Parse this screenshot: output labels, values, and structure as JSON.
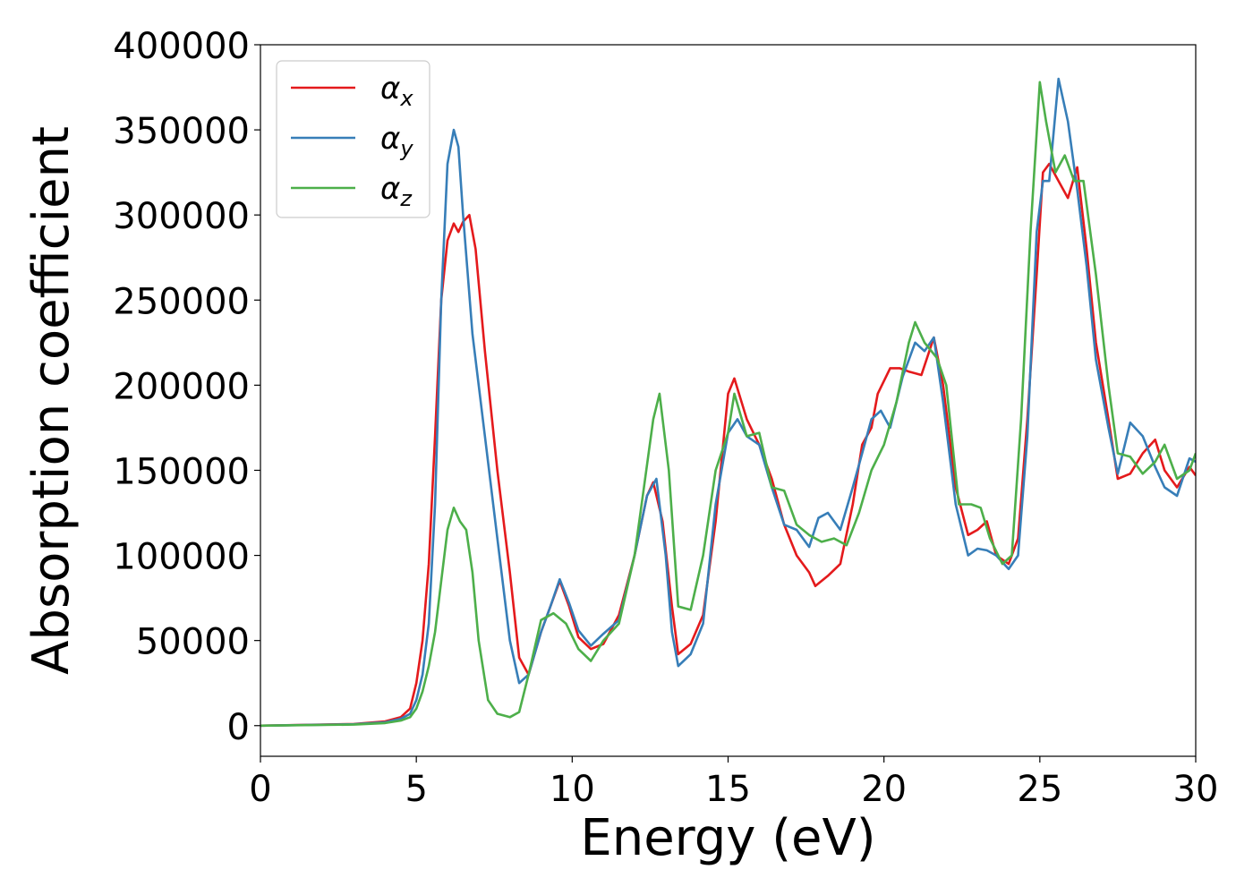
{
  "chart_data": {
    "type": "line",
    "title": "",
    "xlabel": "Energy (eV)",
    "ylabel": "Absorption coefficient",
    "xlim": [
      0,
      30
    ],
    "ylim": [
      -18000,
      400000
    ],
    "xticks": [
      0,
      5,
      10,
      15,
      20,
      25,
      30
    ],
    "xtick_labels": [
      "0",
      "5",
      "10",
      "15",
      "20",
      "25",
      "30"
    ],
    "yticks": [
      0,
      50000,
      100000,
      150000,
      200000,
      250000,
      300000,
      350000,
      400000
    ],
    "ytick_labels": [
      "0",
      "50000",
      "100000",
      "150000",
      "200000",
      "250000",
      "300000",
      "350000",
      "400000"
    ],
    "grid": false,
    "legend_position": "top-left",
    "series": [
      {
        "name": "αx",
        "label_main": "α",
        "label_sub": "x",
        "color": "#e41a1c",
        "x": [
          0,
          3,
          4,
          4.5,
          4.8,
          5.0,
          5.2,
          5.4,
          5.6,
          5.8,
          6.0,
          6.2,
          6.35,
          6.5,
          6.7,
          6.9,
          7.2,
          7.6,
          8.0,
          8.3,
          8.6,
          9.0,
          9.3,
          9.6,
          9.9,
          10.2,
          10.6,
          11.0,
          11.5,
          12.0,
          12.4,
          12.6,
          12.9,
          13.2,
          13.4,
          13.8,
          14.2,
          14.6,
          15.0,
          15.2,
          15.6,
          16.0,
          16.4,
          16.8,
          17.2,
          17.6,
          17.8,
          18.2,
          18.6,
          19.0,
          19.3,
          19.6,
          19.8,
          20.2,
          20.5,
          20.8,
          21.2,
          21.6,
          21.9,
          22.3,
          22.7,
          23.0,
          23.3,
          23.6,
          24.0,
          24.3,
          24.6,
          24.9,
          25.1,
          25.3,
          25.6,
          25.9,
          26.2,
          26.5,
          26.8,
          27.2,
          27.5,
          27.9,
          28.3,
          28.7,
          29.0,
          29.4,
          29.8,
          30.0
        ],
        "y": [
          0,
          1000,
          2500,
          5000,
          10000,
          25000,
          50000,
          95000,
          170000,
          250000,
          285000,
          295000,
          290000,
          296000,
          300000,
          280000,
          220000,
          150000,
          90000,
          40000,
          30000,
          55000,
          70000,
          85000,
          70000,
          52000,
          45000,
          48000,
          65000,
          100000,
          135000,
          143000,
          120000,
          70000,
          42000,
          48000,
          65000,
          120000,
          195000,
          204000,
          180000,
          165000,
          145000,
          118000,
          100000,
          90000,
          82000,
          88000,
          95000,
          130000,
          165000,
          175000,
          195000,
          210000,
          210000,
          208000,
          206000,
          228000,
          200000,
          140000,
          112000,
          115000,
          120000,
          100000,
          95000,
          110000,
          180000,
          265000,
          325000,
          330000,
          320000,
          310000,
          328000,
          280000,
          225000,
          180000,
          145000,
          148000,
          160000,
          168000,
          150000,
          140000,
          152000,
          147000
        ]
      },
      {
        "name": "αy",
        "label_main": "α",
        "label_sub": "y",
        "color": "#377eb8",
        "x": [
          0,
          3,
          4,
          4.5,
          4.8,
          5.0,
          5.2,
          5.4,
          5.6,
          5.8,
          6.0,
          6.2,
          6.35,
          6.5,
          6.8,
          7.2,
          7.6,
          8.0,
          8.3,
          8.6,
          9.0,
          9.3,
          9.6,
          9.9,
          10.2,
          10.6,
          11.0,
          11.5,
          12.0,
          12.4,
          12.7,
          13.0,
          13.2,
          13.4,
          13.8,
          14.2,
          14.6,
          15.0,
          15.3,
          15.6,
          16.0,
          16.4,
          16.8,
          17.2,
          17.6,
          17.9,
          18.2,
          18.6,
          19.0,
          19.3,
          19.6,
          19.9,
          20.2,
          20.6,
          21.0,
          21.3,
          21.6,
          21.9,
          22.3,
          22.7,
          23.0,
          23.3,
          23.6,
          24.0,
          24.3,
          24.6,
          24.9,
          25.1,
          25.3,
          25.6,
          25.9,
          26.2,
          26.5,
          26.8,
          27.2,
          27.5,
          27.9,
          28.3,
          28.7,
          29.0,
          29.4,
          29.8,
          30.0
        ],
        "y": [
          0,
          800,
          2000,
          4000,
          7000,
          15000,
          30000,
          60000,
          130000,
          250000,
          330000,
          350000,
          340000,
          300000,
          230000,
          170000,
          110000,
          50000,
          25000,
          30000,
          55000,
          70000,
          86000,
          72000,
          56000,
          47000,
          54000,
          62000,
          100000,
          135000,
          145000,
          100000,
          55000,
          35000,
          42000,
          60000,
          130000,
          172000,
          180000,
          170000,
          165000,
          140000,
          118000,
          115000,
          105000,
          122000,
          125000,
          115000,
          140000,
          160000,
          180000,
          185000,
          175000,
          205000,
          225000,
          220000,
          228000,
          190000,
          130000,
          100000,
          104000,
          103000,
          100000,
          92000,
          100000,
          170000,
          290000,
          320000,
          320000,
          380000,
          355000,
          315000,
          270000,
          215000,
          175000,
          148000,
          178000,
          170000,
          152000,
          140000,
          135000,
          157000,
          155000
        ]
      },
      {
        "name": "αz",
        "label_main": "α",
        "label_sub": "z",
        "color": "#4daf4a",
        "x": [
          0,
          3,
          4,
          4.5,
          4.8,
          5.0,
          5.2,
          5.4,
          5.6,
          5.8,
          6.0,
          6.2,
          6.4,
          6.6,
          6.8,
          7.0,
          7.3,
          7.6,
          8.0,
          8.3,
          8.6,
          9.0,
          9.4,
          9.8,
          10.2,
          10.6,
          11.0,
          11.5,
          12.0,
          12.3,
          12.6,
          12.8,
          13.1,
          13.4,
          13.8,
          14.2,
          14.6,
          15.0,
          15.2,
          15.6,
          16.0,
          16.4,
          16.8,
          17.2,
          17.6,
          18.0,
          18.4,
          18.8,
          19.2,
          19.6,
          20.0,
          20.4,
          20.8,
          21.0,
          21.3,
          21.7,
          22.0,
          22.4,
          22.8,
          23.1,
          23.4,
          23.8,
          24.1,
          24.4,
          24.7,
          25.0,
          25.2,
          25.5,
          25.8,
          26.1,
          26.4,
          26.8,
          27.2,
          27.5,
          27.9,
          28.3,
          28.7,
          29.0,
          29.4,
          29.8,
          30.0
        ],
        "y": [
          0,
          600,
          1500,
          3000,
          5000,
          10000,
          20000,
          35000,
          55000,
          85000,
          115000,
          128000,
          120000,
          115000,
          90000,
          50000,
          15000,
          7000,
          5000,
          8000,
          30000,
          62000,
          66000,
          60000,
          45000,
          38000,
          50000,
          60000,
          100000,
          140000,
          180000,
          195000,
          150000,
          70000,
          68000,
          100000,
          150000,
          172000,
          195000,
          170000,
          172000,
          140000,
          138000,
          118000,
          112000,
          108000,
          110000,
          106000,
          125000,
          150000,
          165000,
          190000,
          225000,
          237000,
          225000,
          216000,
          200000,
          130000,
          130000,
          128000,
          110000,
          95000,
          100000,
          180000,
          290000,
          378000,
          355000,
          325000,
          335000,
          320000,
          320000,
          265000,
          200000,
          160000,
          158000,
          148000,
          155000,
          165000,
          145000,
          150000,
          160000
        ]
      }
    ]
  }
}
